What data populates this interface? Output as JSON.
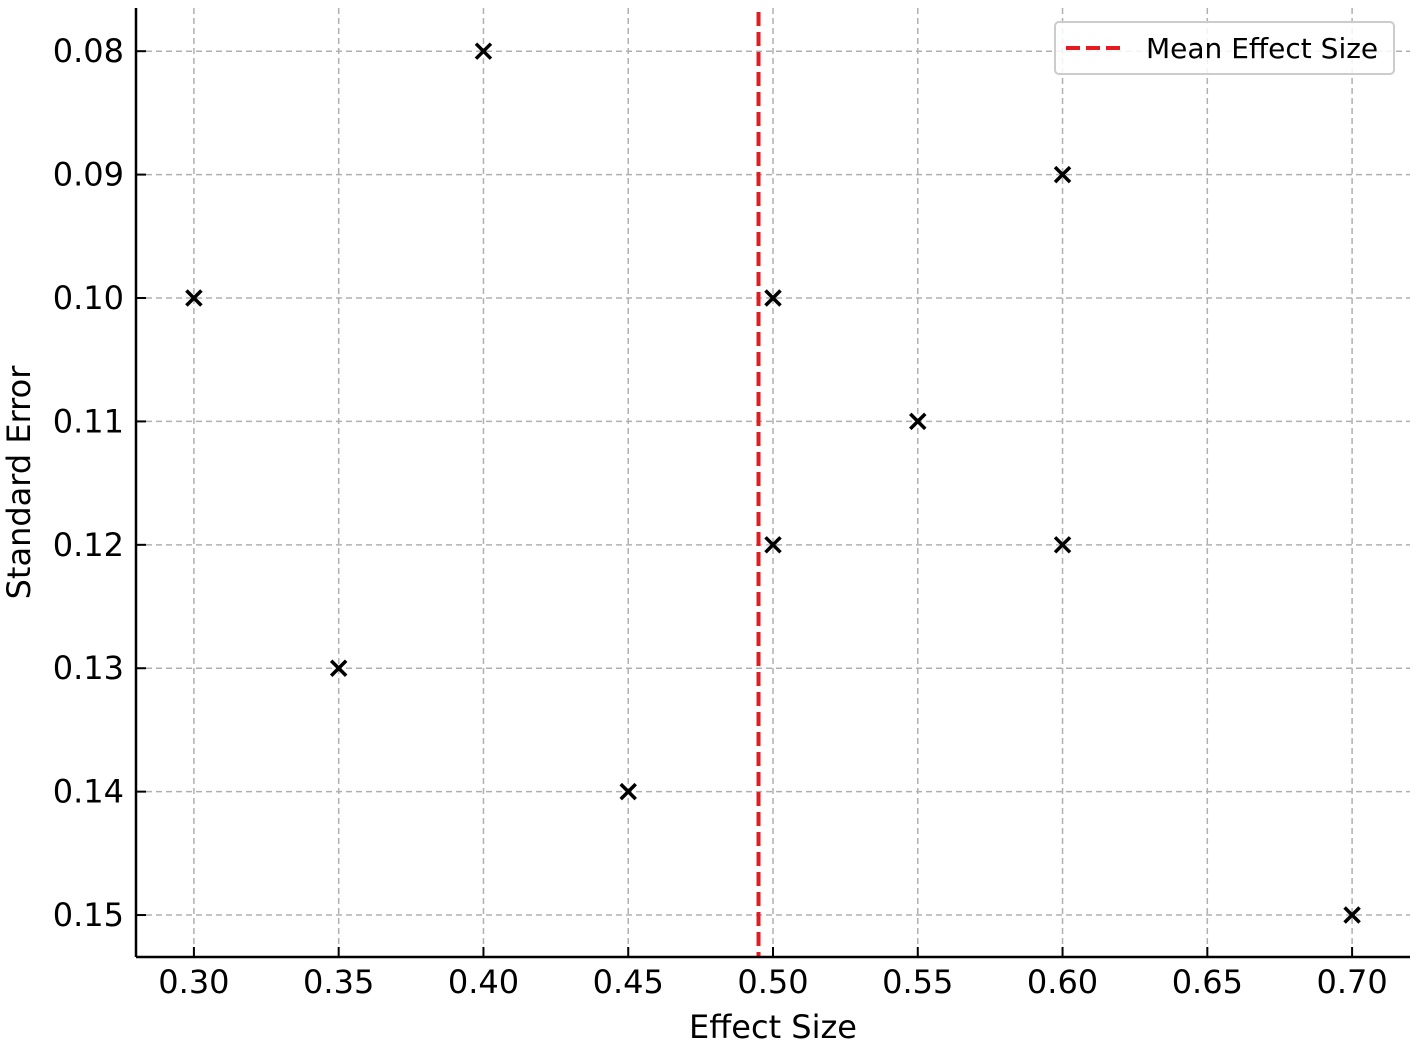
{
  "chart_data": {
    "type": "scatter",
    "title": "",
    "xlabel": "Effect Size",
    "ylabel": "Standard Error",
    "xlim": [
      0.28,
      0.72
    ],
    "ylim": [
      0.0765,
      0.1534
    ],
    "y_inverted": true,
    "x_ticks": [
      "0.30",
      "0.35",
      "0.40",
      "0.45",
      "0.50",
      "0.55",
      "0.60",
      "0.65",
      "0.70"
    ],
    "y_ticks": [
      "0.08",
      "0.09",
      "0.10",
      "0.11",
      "0.12",
      "0.13",
      "0.14",
      "0.15"
    ],
    "grid": true,
    "marker": "x",
    "marker_color": "#000000",
    "points": [
      {
        "x": 0.3,
        "y": 0.1
      },
      {
        "x": 0.35,
        "y": 0.13
      },
      {
        "x": 0.4,
        "y": 0.08
      },
      {
        "x": 0.45,
        "y": 0.14
      },
      {
        "x": 0.5,
        "y": 0.1
      },
      {
        "x": 0.5,
        "y": 0.12
      },
      {
        "x": 0.55,
        "y": 0.11
      },
      {
        "x": 0.6,
        "y": 0.09
      },
      {
        "x": 0.6,
        "y": 0.12
      },
      {
        "x": 0.7,
        "y": 0.15
      }
    ],
    "mean_line": {
      "x": 0.495,
      "color": "#e8191e",
      "style": "dashed",
      "label": "Mean Effect Size"
    },
    "legend": {
      "placement": "top-right",
      "entries": [
        "Mean Effect Size"
      ]
    }
  }
}
